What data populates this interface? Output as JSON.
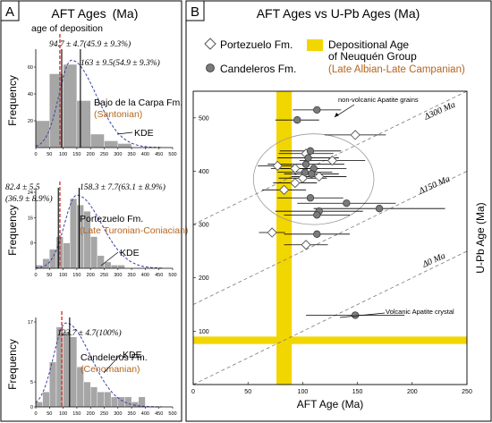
{
  "colors": {
    "bar": "#a6a6a6",
    "kde": "#3a40a8",
    "deposition_line": "#d1382a",
    "orange_text": "#b5651d",
    "yellow": "#f2d600",
    "grid_dash": "#7a7a7a",
    "marker_dark": "#7a7a7a"
  },
  "panel_a": {
    "letter": "A",
    "title": "AFT Ages",
    "title_unit": "(Ma)",
    "deposition_label": "age of deposition",
    "ylabel": "Frequency",
    "kde_label": "KDE",
    "x_ticks": [
      "0",
      "50",
      "100",
      "150",
      "200",
      "250",
      "300",
      "350",
      "400",
      "450",
      "500"
    ]
  },
  "panel_b": {
    "letter": "B",
    "title": "AFT Ages vs U-Pb Ages (Ma)",
    "legend_portezuelo": "Portezuelo Fm.",
    "legend_candeleros": "Candeleros Fm.",
    "legend_dep_line1": "Depositional Age",
    "legend_dep_line2": "of Neuquén Group",
    "legend_dep_line3": "(Late Albian-Late Campanian)",
    "nonvolcanic_label": "non-volcanic Apatite grains",
    "volcanic_label": "Volcanic Apatite crystal",
    "delta300": "Δ300 Ma",
    "delta150": "Δ150 Ma",
    "delta0": "Δ0 Ma"
  },
  "chart_data": [
    {
      "type": "bar",
      "title": "AFT Ages (Ma)",
      "formation": "Bajo de la Carpa Fm.",
      "stage": "(Santonian)",
      "ylabel": "Frequency",
      "xlim": [
        0,
        500
      ],
      "ylim": [
        0,
        70
      ],
      "y_ticks": [
        20,
        40,
        60
      ],
      "bin_width": 50,
      "bin_starts": [
        0,
        50,
        100,
        150,
        200,
        250,
        300
      ],
      "values": [
        20,
        55,
        62,
        35,
        10,
        5,
        3
      ],
      "kde_label": "KDE",
      "kde_peak_age": 130,
      "age_of_deposition": 88,
      "annotations": [
        {
          "text": "94.7 ± 4.7(45.9 ± 9.3%)",
          "x": 94.7
        },
        {
          "text": "163 ± 9.5(54.9 ± 9.3%)",
          "x": 163
        }
      ]
    },
    {
      "type": "bar",
      "formation": "Portezuelo Fm.",
      "stage": "(Late Turonian-Coniacian)",
      "ylabel": "Frequency",
      "xlim": [
        0,
        500
      ],
      "ylim": [
        0,
        24
      ],
      "y_ticks": [
        8,
        16,
        24
      ],
      "bin_width": 25,
      "bin_starts": [
        0,
        25,
        50,
        75,
        100,
        125,
        150,
        175,
        200,
        225,
        250,
        275,
        300
      ],
      "values": [
        1,
        3,
        6,
        10,
        8,
        22,
        20,
        18,
        10,
        4,
        2,
        1,
        1
      ],
      "kde_label": "KDE",
      "kde_peak_age": 150,
      "age_of_deposition": 88,
      "annotations": [
        {
          "text": "82.4 ± 5.5",
          "x": 82.4
        },
        {
          "text": "(36.9 ± 8.9%)",
          "x": 82.4
        },
        {
          "text": "158.3 ± 7.7(63.1 ± 8.9%)",
          "x": 158.3
        }
      ]
    },
    {
      "type": "bar",
      "formation": "Candeleros Fm.",
      "stage": "(Cenomanian)",
      "ylabel": "Frequency",
      "xlim": [
        0,
        500
      ],
      "ylim": [
        0,
        17
      ],
      "y_ticks": [
        0,
        5,
        17
      ],
      "bin_width": 25,
      "bin_starts": [
        0,
        25,
        50,
        75,
        100,
        125,
        150,
        175,
        200,
        225,
        250,
        275,
        300,
        325,
        350,
        375
      ],
      "values": [
        1,
        3,
        9,
        16,
        15,
        14,
        8,
        5,
        4,
        3,
        3,
        2,
        2,
        2,
        1,
        2
      ],
      "kde_label": "KDE",
      "kde_peak_age": 110,
      "age_of_deposition": 95,
      "annotations": [
        {
          "text": "123.7 ± 4.7(100%)",
          "x": 123.7
        }
      ]
    },
    {
      "type": "scatter",
      "title": "AFT Ages vs U-Pb Ages (Ma)",
      "xlabel": "AFT Age (Ma)",
      "ylabel": "U-Pb Age (Ma)",
      "xlim": [
        0,
        250
      ],
      "ylim": [
        0,
        550
      ],
      "x_ticks": [
        0,
        50,
        100,
        150,
        200,
        250
      ],
      "y_ticks": [
        0,
        100,
        200,
        300,
        400,
        500
      ],
      "depositional_band_x": [
        76,
        90
      ],
      "depositional_band_y": [
        76,
        90
      ],
      "reference_lines": [
        {
          "label": "Δ300 Ma",
          "offset": 300
        },
        {
          "label": "Δ150 Ma",
          "offset": 150
        },
        {
          "label": "Δ0 Ma",
          "offset": 0
        }
      ],
      "series": [
        {
          "name": "Portezuelo Fm.",
          "marker": "diamond",
          "points": [
            {
              "x": 148,
              "y": 468,
              "xerr": 28
            },
            {
              "x": 103,
              "y": 433,
              "xerr": 25
            },
            {
              "x": 127,
              "y": 420,
              "xerr": 30
            },
            {
              "x": 77,
              "y": 410,
              "xerr": 18
            },
            {
              "x": 93,
              "y": 405,
              "xerr": 22
            },
            {
              "x": 115,
              "y": 390,
              "xerr": 25
            },
            {
              "x": 100,
              "y": 387,
              "xerr": 22
            },
            {
              "x": 93,
              "y": 378,
              "xerr": 20
            },
            {
              "x": 83,
              "y": 365,
              "xerr": 20
            },
            {
              "x": 72,
              "y": 285,
              "xerr": 12
            },
            {
              "x": 103,
              "y": 262,
              "xerr": 20
            }
          ]
        },
        {
          "name": "Candeleros Fm.",
          "marker": "circle",
          "points": [
            {
              "x": 95,
              "y": 496,
              "xerr": 20
            },
            {
              "x": 113,
              "y": 515,
              "xerr": 22
            },
            {
              "x": 107,
              "y": 438,
              "xerr": 28
            },
            {
              "x": 105,
              "y": 425,
              "xerr": 28
            },
            {
              "x": 103,
              "y": 413,
              "xerr": 35
            },
            {
              "x": 110,
              "y": 405,
              "xerr": 30
            },
            {
              "x": 108,
              "y": 395,
              "xerr": 25
            },
            {
              "x": 102,
              "y": 398,
              "xerr": 25
            },
            {
              "x": 107,
              "y": 350,
              "xerr": 30
            },
            {
              "x": 115,
              "y": 325,
              "xerr": 40
            },
            {
              "x": 140,
              "y": 340,
              "xerr": 45
            },
            {
              "x": 113,
              "y": 318,
              "xerr": 30
            },
            {
              "x": 170,
              "y": 330,
              "xerr": 60
            },
            {
              "x": 113,
              "y": 282,
              "xerr": 30
            },
            {
              "x": 148,
              "y": 130,
              "xerr": 45
            }
          ]
        }
      ]
    }
  ]
}
